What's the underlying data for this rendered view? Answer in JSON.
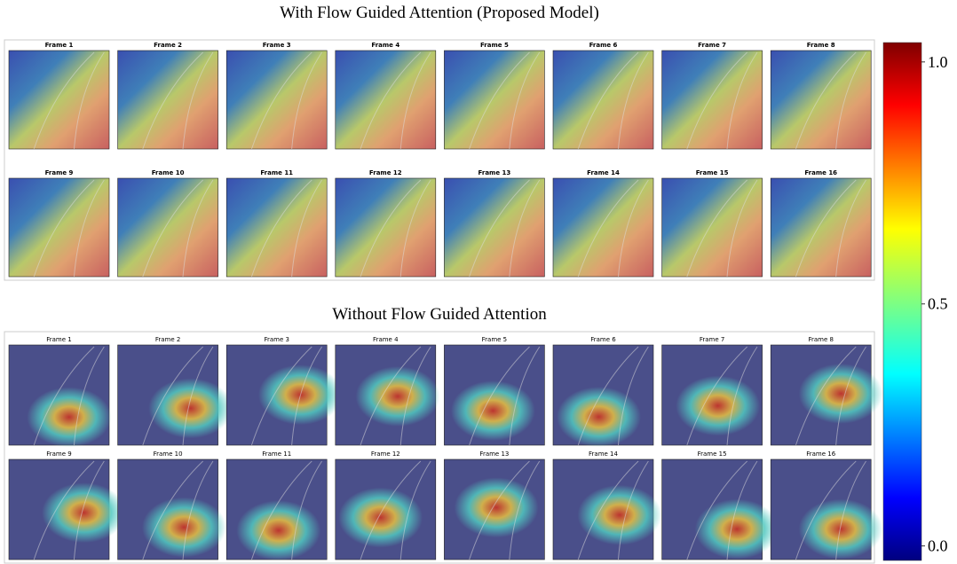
{
  "panels": [
    {
      "title": "With Flow Guided Attention (Proposed Model)",
      "frames": [
        "Frame 1",
        "Frame 2",
        "Frame 3",
        "Frame 4",
        "Frame 5",
        "Frame 6",
        "Frame 7",
        "Frame 8",
        "Frame 9",
        "Frame 10",
        "Frame 11",
        "Frame 12",
        "Frame 13",
        "Frame 14",
        "Frame 15",
        "Frame 16"
      ]
    },
    {
      "title": "Without Flow Guided Attention",
      "frames": [
        "Frame 1",
        "Frame 2",
        "Frame 3",
        "Frame 4",
        "Frame 5",
        "Frame 6",
        "Frame 7",
        "Frame 8",
        "Frame 9",
        "Frame 10",
        "Frame 11",
        "Frame 12",
        "Frame 13",
        "Frame 14",
        "Frame 15",
        "Frame 16"
      ]
    }
  ],
  "colorbar": {
    "lim": [
      -0.03,
      1.04
    ],
    "ticks": [
      {
        "value": 0,
        "label": "0.0"
      },
      {
        "value": 0.5,
        "label": "0.5"
      },
      {
        "value": 1,
        "label": "1.0"
      }
    ]
  }
}
